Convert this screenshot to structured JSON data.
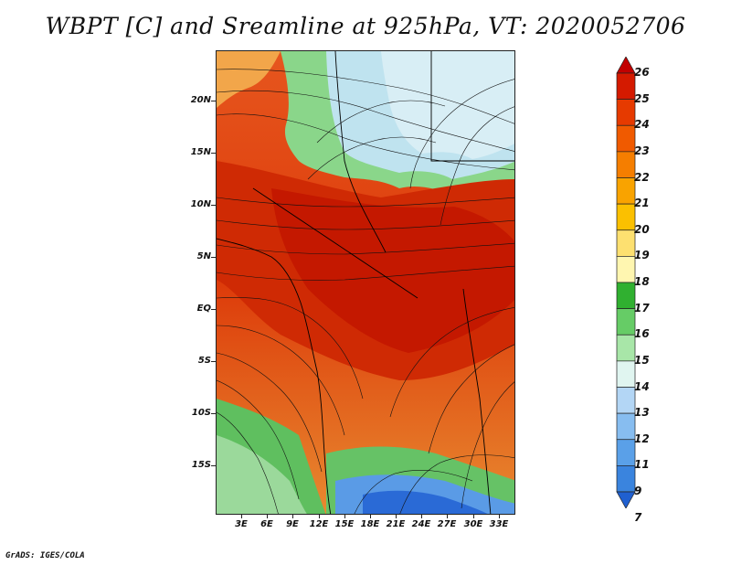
{
  "title": "WBPT [C] and Sreamline at 925hPa, VT: 2020052706",
  "credit": "GrADS: IGES/COLA",
  "map": {
    "latitude_labels": [
      "20N",
      "15N",
      "10N",
      "5N",
      "EQ",
      "5S",
      "10S",
      "15S"
    ],
    "longitude_labels": [
      "3E",
      "6E",
      "9E",
      "12E",
      "15E",
      "18E",
      "21E",
      "24E",
      "27E",
      "30E",
      "33E"
    ],
    "overlay": "streamlines",
    "fill_regions": [
      {
        "name": "sahel-cool-north",
        "level": 15
      },
      {
        "name": "tropical-warm-belt",
        "level": 24
      },
      {
        "name": "southern-cool-zone",
        "level": 13
      }
    ]
  },
  "colorbar": {
    "labels": [
      "26",
      "25",
      "24",
      "23",
      "22",
      "21",
      "20",
      "19",
      "18",
      "17",
      "16",
      "15",
      "14",
      "13",
      "12",
      "11",
      "9",
      "7"
    ],
    "colors": [
      "#c20000",
      "#d41a00",
      "#e63a00",
      "#f05a00",
      "#f57e00",
      "#f9a300",
      "#fbc000",
      "#fde070",
      "#fff6b0",
      "#30b030",
      "#66cc66",
      "#a8e6a8",
      "#e0f5f0",
      "#b3d6f5",
      "#87bdf0",
      "#5aa0e8",
      "#3a84de",
      "#2060d0"
    ]
  }
}
